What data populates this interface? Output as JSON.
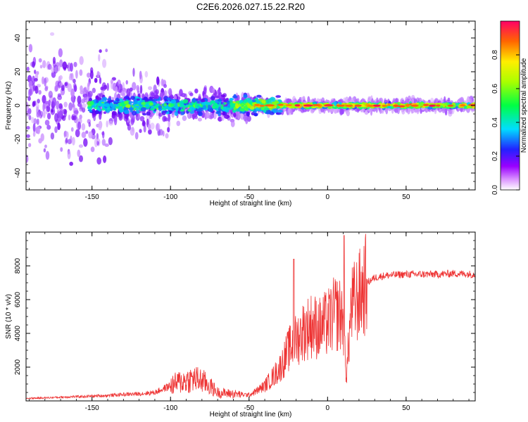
{
  "chart_data": [
    {
      "type": "heatmap",
      "title": "C2E6.2026.027.15.22.R20",
      "xlabel": "Height of straight line (km)",
      "ylabel": "Frequency (Hz)",
      "xlim": [
        -192,
        94
      ],
      "ylim": [
        -50,
        50
      ],
      "xticks": [
        -150,
        -100,
        -50,
        0,
        50
      ],
      "yticks": [
        -40,
        -20,
        0,
        20,
        40
      ],
      "colorbar": {
        "label": "Normalized spectral amplitude",
        "range": [
          0,
          1
        ],
        "ticks": [
          "0.0",
          "0.2",
          "0.4",
          "0.6",
          "0.8"
        ],
        "tick_values": [
          0,
          0.2,
          0.4,
          0.6,
          0.8
        ]
      },
      "description_of_features": {
        "band_center_frequency_hz": 0,
        "band_narrows_after_km": -30,
        "band_half_width_hz_low_altitude": 8,
        "band_half_width_hz_high_altitude": 2
      }
    },
    {
      "type": "line",
      "xlabel": "Height of straight line (km)",
      "ylabel": "SNR (10 * v/v)",
      "xlim": [
        -192,
        94
      ],
      "ylim": [
        0,
        10000
      ],
      "xticks": [
        -150,
        -100,
        -50,
        0,
        50
      ],
      "yticks": [
        2000,
        4000,
        6000,
        8000
      ],
      "color": "#ee3333",
      "series": [
        {
          "name": "SNR",
          "x": [
            -192,
            -180,
            -170,
            -160,
            -150,
            -140,
            -130,
            -120,
            -110,
            -100,
            -95,
            -90,
            -85,
            -80,
            -75,
            -70,
            -65,
            -60,
            -55,
            -50,
            -45,
            -40,
            -35,
            -30,
            -25,
            -20,
            -15,
            -10,
            -5,
            0,
            5,
            10,
            12,
            15,
            20,
            25,
            30,
            35,
            40,
            50,
            60,
            70,
            80,
            94
          ],
          "values": [
            150,
            180,
            220,
            250,
            280,
            320,
            380,
            420,
            500,
            900,
            1100,
            1200,
            1300,
            1200,
            900,
            500,
            450,
            420,
            380,
            350,
            600,
            900,
            1400,
            2000,
            3000,
            3600,
            4200,
            4500,
            4300,
            4600,
            5200,
            5000,
            1400,
            5500,
            6200,
            7000,
            7300,
            7400,
            7450,
            7500,
            7500,
            7500,
            7550,
            7500
          ]
        }
      ]
    }
  ],
  "colors": {
    "line": "#ee3333",
    "axis": "#000000"
  }
}
